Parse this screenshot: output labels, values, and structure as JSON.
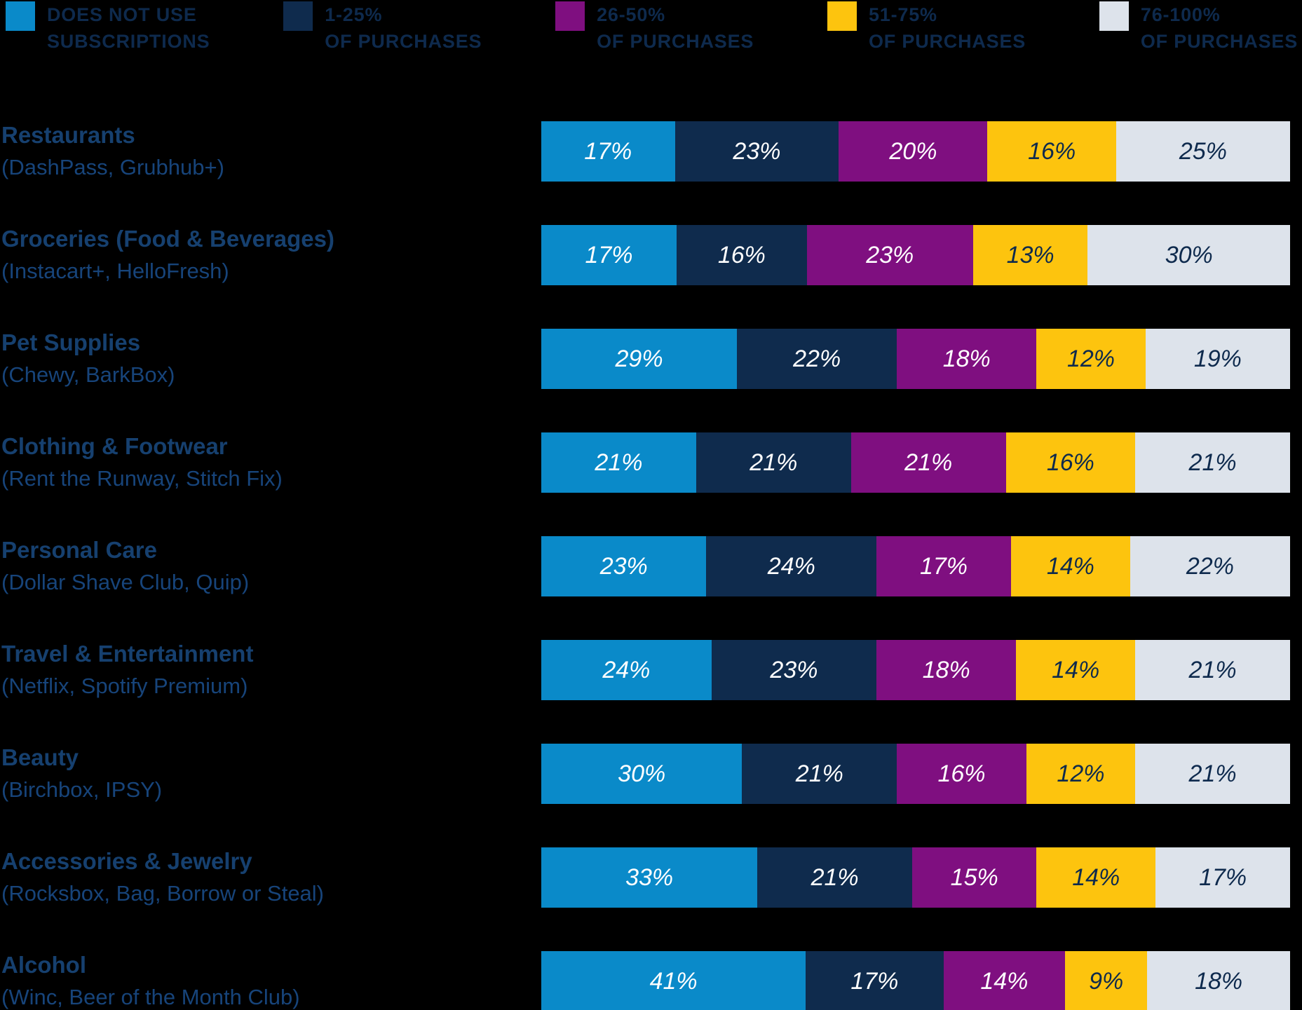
{
  "legend": {
    "items": [
      {
        "line1": "DOES NOT USE",
        "line2": "SUBSCRIPTIONS",
        "color": "#0A8AC9"
      },
      {
        "line1": "1-25%",
        "line2": "OF PURCHASES",
        "color": "#0F2B4D"
      },
      {
        "line1": "26-50%",
        "line2": "OF PURCHASES",
        "color": "#7F0F80"
      },
      {
        "line1": "51-75%",
        "line2": "OF PURCHASES",
        "color": "#FDC40E"
      },
      {
        "line1": "76-100%",
        "line2": "OF PURCHASES",
        "color": "#DDE3EB"
      }
    ],
    "text_color": "#0E2A4D"
  },
  "chart_data": {
    "type": "bar",
    "orientation": "horizontal",
    "stacked": true,
    "unit": "%",
    "value_suffix": "%",
    "legend_position": "top",
    "grid": false,
    "categories": [
      "Restaurants",
      "Groceries (Food & Beverages)",
      "Pet Supplies",
      "Clothing & Footwear",
      "Personal Care",
      "Travel & Entertainment",
      "Beauty",
      "Accessories & Jewelry",
      "Alcohol"
    ],
    "category_sublabels": [
      "(DashPass, Grubhub+)",
      "(Instacart+, HelloFresh)",
      "(Chewy, BarkBox)",
      "(Rent the Runway, Stitch Fix)",
      "(Dollar Shave Club, Quip)",
      "(Netflix, Spotify Premium)",
      "(Birchbox, IPSY)",
      "(Rocksbox, Bag, Borrow or Steal)",
      "(Winc, Beer of the Month Club)"
    ],
    "series": [
      {
        "name": "Does not use subscriptions",
        "color": "#0A8AC9",
        "value_text_color": "#FFFFFF",
        "values": [
          17,
          17,
          29,
          21,
          23,
          24,
          30,
          33,
          41
        ]
      },
      {
        "name": "1-25% of purchases",
        "color": "#0F2B4D",
        "value_text_color": "#FFFFFF",
        "values": [
          23,
          16,
          22,
          21,
          24,
          23,
          21,
          21,
          17
        ]
      },
      {
        "name": "26-50% of purchases",
        "color": "#7F0F80",
        "value_text_color": "#FFFFFF",
        "values": [
          20,
          23,
          18,
          21,
          17,
          18,
          16,
          15,
          14
        ]
      },
      {
        "name": "51-75% of purchases",
        "color": "#FDC40E",
        "value_text_color": "#0E2A4D",
        "values": [
          16,
          13,
          12,
          16,
          14,
          14,
          12,
          14,
          9
        ]
      },
      {
        "name": "76-100% of purchases",
        "color": "#DDE3EB",
        "value_text_color": "#0E2A4D",
        "values": [
          25,
          30,
          19,
          21,
          22,
          21,
          21,
          17,
          18
        ]
      }
    ]
  }
}
